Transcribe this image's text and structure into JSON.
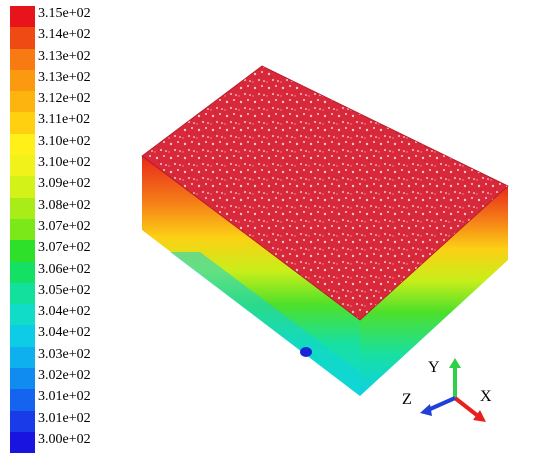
{
  "legend": {
    "entries": [
      {
        "label": "3.15e+02",
        "color": "#e8141c"
      },
      {
        "label": "3.14e+02",
        "color": "#f04a14"
      },
      {
        "label": "3.13e+02",
        "color": "#f87a12"
      },
      {
        "label": "3.13e+02",
        "color": "#fb9a10"
      },
      {
        "label": "3.12e+02",
        "color": "#fdb40f"
      },
      {
        "label": "3.11e+02",
        "color": "#ffd010"
      },
      {
        "label": "3.10e+02",
        "color": "#fff01a"
      },
      {
        "label": "3.10e+02",
        "color": "#f0f21a"
      },
      {
        "label": "3.09e+02",
        "color": "#d2f218"
      },
      {
        "label": "3.08e+02",
        "color": "#a8ec18"
      },
      {
        "label": "3.07e+02",
        "color": "#7be81a"
      },
      {
        "label": "3.07e+02",
        "color": "#2ee02a"
      },
      {
        "label": "3.06e+02",
        "color": "#14e064"
      },
      {
        "label": "3.05e+02",
        "color": "#12e09c"
      },
      {
        "label": "3.04e+02",
        "color": "#10dcc8"
      },
      {
        "label": "3.04e+02",
        "color": "#0ecce6"
      },
      {
        "label": "3.03e+02",
        "color": "#0eb0ee"
      },
      {
        "label": "3.02e+02",
        "color": "#108cf0"
      },
      {
        "label": "3.01e+02",
        "color": "#1464f0"
      },
      {
        "label": "3.01e+02",
        "color": "#1a3ce8"
      },
      {
        "label": "3.00e+02",
        "color": "#1a14e0"
      }
    ]
  },
  "triad": {
    "x_label": "X",
    "y_label": "Y",
    "z_label": "Z",
    "x_color": "#e8201c",
    "y_color": "#2ed048",
    "z_color": "#2040d8"
  }
}
